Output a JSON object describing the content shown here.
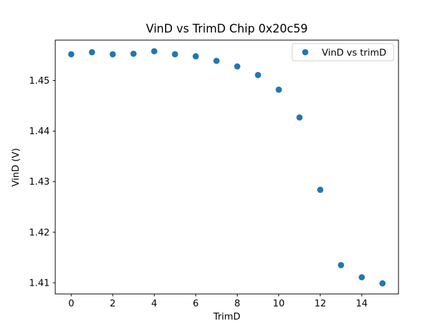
{
  "chart_data": {
    "type": "scatter",
    "title": "VinD vs TrimD Chip 0x20c59",
    "xlabel": "TrimD",
    "ylabel": "VinD (V)",
    "legend": {
      "label": "VinD vs trimD",
      "position": "upper right"
    },
    "marker": {
      "shape": "circle",
      "color": "#1f77b4",
      "radius_px": 4.5
    },
    "x": [
      0,
      1,
      2,
      3,
      4,
      5,
      6,
      7,
      8,
      9,
      10,
      11,
      12,
      13,
      14,
      15
    ],
    "y": [
      1.4552,
      1.4556,
      1.4552,
      1.4553,
      1.4558,
      1.4552,
      1.4548,
      1.4539,
      1.4528,
      1.4511,
      1.4482,
      1.4427,
      1.4284,
      1.4135,
      1.4111,
      1.4099
    ],
    "xlim": [
      -0.77,
      15.77
    ],
    "ylim": [
      1.4078,
      1.458
    ],
    "xticks": [
      0,
      2,
      4,
      6,
      8,
      10,
      12,
      14
    ],
    "xtick_labels": [
      "0",
      "2",
      "4",
      "6",
      "8",
      "10",
      "12",
      "14"
    ],
    "yticks": [
      1.41,
      1.42,
      1.43,
      1.44,
      1.45
    ],
    "ytick_labels": [
      "1.41",
      "1.42",
      "1.43",
      "1.44",
      "1.45"
    ],
    "grid": false,
    "background_color": "#ffffff",
    "spine_color": "#000000"
  }
}
